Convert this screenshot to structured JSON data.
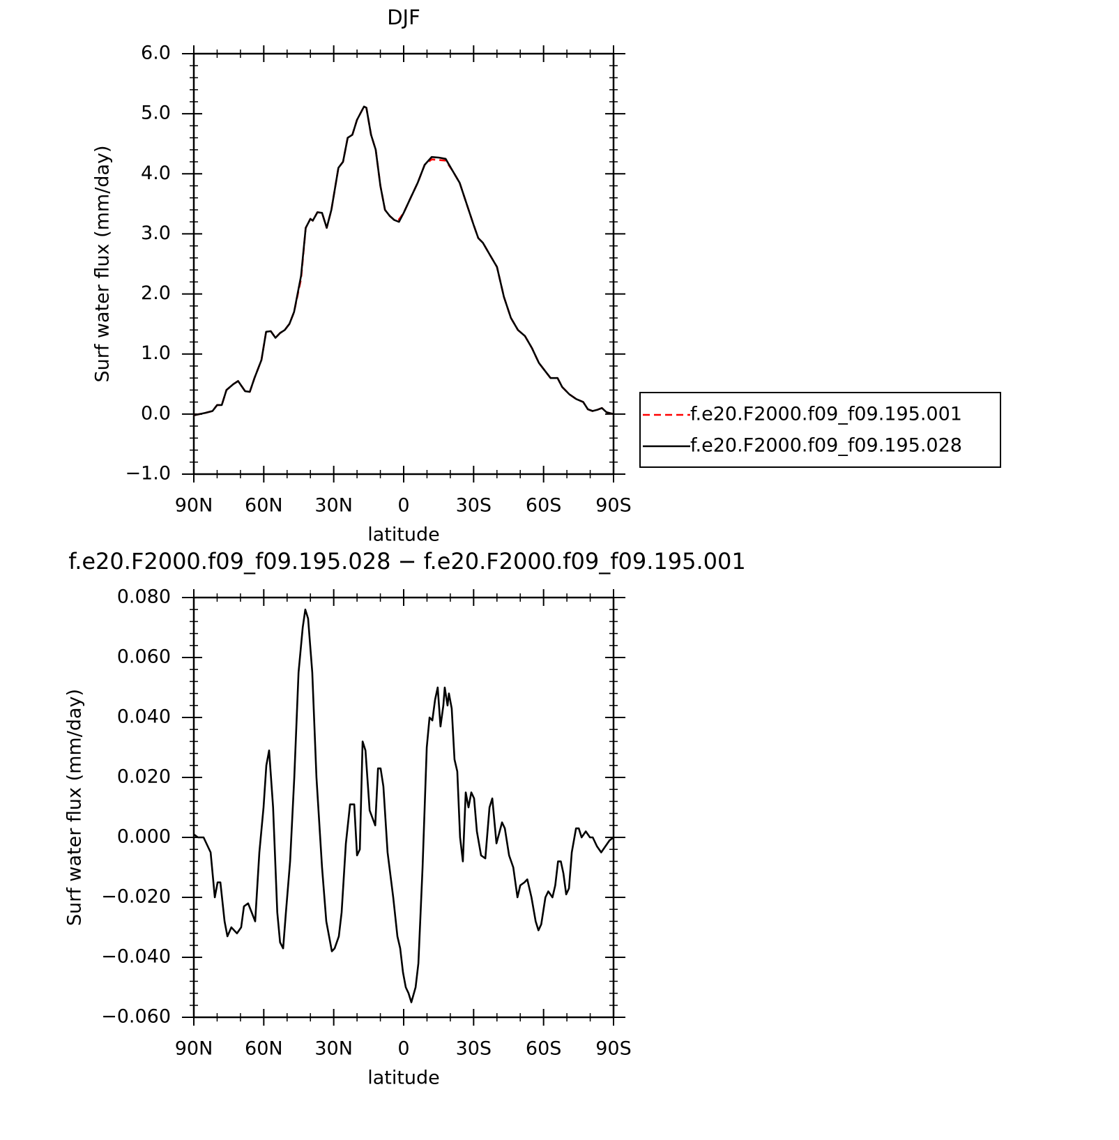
{
  "chart_data": [
    {
      "type": "line",
      "title": "DJF",
      "ylabel": "Surf water flux (mm/day)",
      "xlabel": "latitude",
      "x": [
        90,
        85,
        82,
        80,
        78,
        76,
        73,
        71,
        68,
        66,
        64,
        61,
        59,
        57,
        55,
        53,
        51,
        49,
        47,
        44,
        42,
        40,
        39,
        37,
        35,
        33,
        31,
        28,
        26,
        24,
        22,
        20,
        17,
        16,
        14,
        12,
        10,
        8,
        6,
        4,
        2,
        0,
        -3,
        -6,
        -9,
        -12,
        -15,
        -18,
        -21,
        -24,
        -27,
        -30,
        -32,
        -34,
        -37,
        -40,
        -43,
        -46,
        -49,
        -52,
        -55,
        -58,
        -61,
        -63,
        -66,
        -68,
        -71,
        -74,
        -77,
        -79,
        -81,
        -83,
        -85,
        -87,
        -90
      ],
      "series": [
        {
          "name": "f.e20.F2000.f09_f09.195.001",
          "color": "#ff0000",
          "dash": true,
          "values": [
            -0.02,
            0.02,
            0.05,
            0.15,
            0.15,
            0.4,
            0.5,
            0.55,
            0.38,
            0.37,
            0.6,
            0.9,
            1.37,
            1.38,
            1.27,
            1.35,
            1.4,
            1.5,
            1.7,
            2.25,
            3.1,
            3.25,
            3.22,
            3.36,
            3.35,
            3.1,
            3.4,
            4.1,
            4.2,
            4.6,
            4.65,
            4.9,
            5.12,
            5.1,
            4.65,
            4.4,
            3.8,
            3.4,
            3.3,
            3.23,
            3.24,
            3.35,
            3.6,
            3.85,
            4.15,
            4.24,
            4.23,
            4.22,
            4.05,
            3.85,
            3.5,
            3.15,
            2.93,
            2.85,
            2.65,
            2.45,
            1.95,
            1.6,
            1.4,
            1.3,
            1.1,
            0.85,
            0.7,
            0.6,
            0.6,
            0.45,
            0.33,
            0.25,
            0.2,
            0.08,
            0.05,
            0.07,
            0.1,
            0.03,
            0.0
          ]
        },
        {
          "name": "f.e20.F2000.f09_f09.195.028",
          "color": "#000000",
          "dash": false,
          "values": [
            -0.02,
            0.02,
            0.05,
            0.15,
            0.15,
            0.4,
            0.5,
            0.55,
            0.38,
            0.37,
            0.6,
            0.9,
            1.37,
            1.38,
            1.27,
            1.35,
            1.4,
            1.5,
            1.7,
            2.3,
            3.1,
            3.25,
            3.22,
            3.36,
            3.35,
            3.1,
            3.4,
            4.1,
            4.2,
            4.6,
            4.65,
            4.9,
            5.12,
            5.1,
            4.65,
            4.4,
            3.8,
            3.4,
            3.3,
            3.23,
            3.2,
            3.35,
            3.6,
            3.85,
            4.15,
            4.28,
            4.27,
            4.25,
            4.05,
            3.85,
            3.5,
            3.15,
            2.93,
            2.85,
            2.65,
            2.45,
            1.95,
            1.6,
            1.4,
            1.3,
            1.1,
            0.85,
            0.7,
            0.6,
            0.6,
            0.45,
            0.33,
            0.25,
            0.2,
            0.08,
            0.05,
            0.07,
            0.1,
            0.03,
            0.0
          ]
        }
      ],
      "xlim": [
        90,
        -90
      ],
      "xticks": [
        {
          "value": 90,
          "label": "90N"
        },
        {
          "value": 60,
          "label": "60N"
        },
        {
          "value": 30,
          "label": "30N"
        },
        0,
        {
          "value": -30,
          "label": "30S"
        },
        {
          "value": -60,
          "label": "60S"
        },
        {
          "value": -90,
          "label": "90S"
        }
      ],
      "xminorticks": [
        80,
        70,
        50,
        40,
        20,
        10,
        -10,
        -20,
        -40,
        -50,
        -70,
        -80
      ],
      "ylim": [
        -1,
        6
      ],
      "yticks": [
        {
          "value": -1,
          "label": "−1.0"
        },
        {
          "value": 0,
          "label": "0.0"
        },
        {
          "value": 1,
          "label": "1.0"
        },
        {
          "value": 2,
          "label": "2.0"
        },
        {
          "value": 3,
          "label": "3.0"
        },
        {
          "value": 4,
          "label": "4.0"
        },
        {
          "value": 5,
          "label": "5.0"
        },
        {
          "value": 6,
          "label": "6.0"
        }
      ],
      "yminorticks": [
        -0.8,
        -0.6,
        -0.4,
        -0.2,
        0.2,
        0.4,
        0.6,
        0.8,
        1.2,
        1.4,
        1.6,
        1.8,
        2.2,
        2.4,
        2.6,
        2.8,
        3.2,
        3.4,
        3.6,
        3.8,
        4.2,
        4.4,
        4.6,
        4.8,
        5.2,
        5.4,
        5.6,
        5.8
      ],
      "legend": "right"
    },
    {
      "type": "line",
      "title": "f.e20.F2000.f09_f09.195.028 − f.e20.F2000.f09_f09.195.001",
      "ylabel": "Surf water flux (mm/day)",
      "xlabel": "latitude",
      "color": "#000000",
      "x": [
        90,
        88.2,
        85.8,
        82.8,
        81,
        79.8,
        78.6,
        76.8,
        75.6,
        73.9,
        71.5,
        69.7,
        68.5,
        66.7,
        63.7,
        61.9,
        60.1,
        58.9,
        57.7,
        56,
        54.2,
        53,
        51.7,
        50.5,
        48.7,
        46.9,
        45.1,
        43.3,
        42.2,
        41,
        39.2,
        37.4,
        35,
        33.2,
        30.8,
        29.6,
        27.8,
        26.6,
        24.8,
        23,
        21.2,
        20,
        18.8,
        17.6,
        16.4,
        14.6,
        12.2,
        11,
        9.9,
        8.7,
        6.9,
        4.5,
        2.7,
        1.5,
        0.3,
        -0.9,
        -2.1,
        -3.3,
        -5.1,
        -6.3,
        -8.1,
        -9.9,
        -11.1,
        -12.3,
        -13.5,
        -14.6,
        -15.8,
        -17,
        -17.6,
        -18.8,
        -19.4,
        -20.6,
        -21.8,
        -23,
        -24.2,
        -25.4,
        -26.6,
        -27.8,
        -29,
        -30.2,
        -31.4,
        -33.2,
        -35,
        -36.8,
        -38,
        -39.8,
        -42.2,
        -43.4,
        -45.2,
        -47,
        -48.8,
        -50,
        -51.8,
        -53,
        -54.8,
        -56.6,
        -57.8,
        -59,
        -60.8,
        -62,
        -63.8,
        -65,
        -66.2,
        -67.4,
        -68.5,
        -69.7,
        -70.9,
        -72.1,
        -73.9,
        -75.1,
        -76.3,
        -78.1,
        -79.9,
        -81.1,
        -82.9,
        -84.7,
        -86.5,
        -88.3,
        -90
      ],
      "values": [
        0.001,
        0,
        0,
        -0.005,
        -0.02,
        -0.015,
        -0.015,
        -0.028,
        -0.033,
        -0.03,
        -0.032,
        -0.03,
        -0.023,
        -0.022,
        -0.028,
        -0.005,
        0.01,
        0.024,
        0.029,
        0.01,
        -0.025,
        -0.035,
        -0.037,
        -0.025,
        -0.008,
        0.02,
        0.055,
        0.07,
        0.076,
        0.073,
        0.055,
        0.02,
        -0.01,
        -0.028,
        -0.038,
        -0.037,
        -0.033,
        -0.025,
        -0.002,
        0.011,
        0.011,
        -0.006,
        -0.004,
        0.032,
        0.029,
        0.009,
        0.004,
        0.023,
        0.023,
        0.017,
        -0.005,
        -0.02,
        -0.033,
        -0.037,
        -0.045,
        -0.05,
        -0.052,
        -0.055,
        -0.05,
        -0.042,
        -0.01,
        0.03,
        0.04,
        0.039,
        0.046,
        0.05,
        0.037,
        0.044,
        0.05,
        0.044,
        0.048,
        0.043,
        0.026,
        0.022,
        0,
        -0.008,
        0.015,
        0.01,
        0.015,
        0.013,
        0.002,
        -0.006,
        -0.007,
        0.01,
        0.013,
        -0.002,
        0.005,
        0.003,
        -0.006,
        -0.01,
        -0.02,
        -0.016,
        -0.015,
        -0.014,
        -0.02,
        -0.028,
        -0.031,
        -0.029,
        -0.02,
        -0.018,
        -0.02,
        -0.016,
        -0.008,
        -0.008,
        -0.012,
        -0.019,
        -0.017,
        -0.005,
        0.003,
        0.003,
        0,
        0.002,
        0,
        0,
        -0.003,
        -0.005,
        -0.003,
        -0.001,
        0
      ],
      "xlim": [
        90,
        -90
      ],
      "xticks": [
        {
          "value": 90,
          "label": "90N"
        },
        {
          "value": 60,
          "label": "60N"
        },
        {
          "value": 30,
          "label": "30N"
        },
        0,
        {
          "value": -30,
          "label": "30S"
        },
        {
          "value": -60,
          "label": "60S"
        },
        {
          "value": -90,
          "label": "90S"
        }
      ],
      "xminorticks": [
        80,
        70,
        50,
        40,
        20,
        10,
        -10,
        -20,
        -40,
        -50,
        -70,
        -80
      ],
      "ylim": [
        -0.06,
        0.08
      ],
      "yticks": [
        {
          "value": -0.06,
          "label": "−0.060"
        },
        {
          "value": -0.04,
          "label": "−0.040"
        },
        {
          "value": -0.02,
          "label": "−0.020"
        },
        {
          "value": 0,
          "label": "0.000"
        },
        {
          "value": 0.02,
          "label": "0.020"
        },
        {
          "value": 0.04,
          "label": "0.040"
        },
        {
          "value": 0.06,
          "label": "0.060"
        },
        {
          "value": 0.08,
          "label": "0.080"
        }
      ],
      "yminorticks": [
        -0.056,
        -0.052,
        -0.048,
        -0.044,
        -0.036,
        -0.032,
        -0.028,
        -0.024,
        -0.016,
        -0.012,
        -0.008,
        -0.004,
        0.004,
        0.008,
        0.012,
        0.016,
        0.024,
        0.028,
        0.032,
        0.036,
        0.044,
        0.048,
        0.052,
        0.056,
        0.064,
        0.068,
        0.072,
        0.076
      ]
    }
  ]
}
